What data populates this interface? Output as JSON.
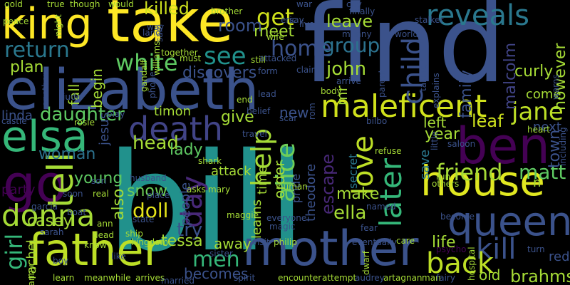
{
  "words": [
    {
      "text": "bill",
      "color": "#21918c",
      "rotated": false
    },
    {
      "text": "find",
      "color": "#3b528b",
      "rotated": false
    },
    {
      "text": "elizabeth",
      "color": "#3b528b",
      "rotated": false
    },
    {
      "text": "take",
      "color": "#fde725",
      "rotated": false
    },
    {
      "text": "king",
      "color": "#fde725",
      "rotated": false
    },
    {
      "text": "mother",
      "color": "#3b528b",
      "rotated": false
    },
    {
      "text": "father",
      "color": "#bddf26",
      "rotated": false
    },
    {
      "text": "house",
      "color": "#e0e721",
      "rotated": false
    },
    {
      "text": "ben",
      "color": "#440154",
      "rotated": false
    },
    {
      "text": "queen",
      "color": "#3b528b",
      "rotated": false
    },
    {
      "text": "maleficent",
      "color": "#d0e11c",
      "rotated": false
    },
    {
      "text": "elsa",
      "color": "#35b779",
      "rotated": false
    },
    {
      "text": "go",
      "color": "#440154",
      "rotated": false
    },
    {
      "text": "death",
      "color": "#414487",
      "rotated": false
    },
    {
      "text": "reveals",
      "color": "#2a788e",
      "rotated": false
    },
    {
      "text": "child",
      "color": "#3b528b",
      "rotated": true
    },
    {
      "text": "kill",
      "color": "#3b528b",
      "rotated": false
    },
    {
      "text": "love",
      "color": "#bddf26",
      "rotated": true
    },
    {
      "text": "later",
      "color": "#35b779",
      "rotated": true
    },
    {
      "text": "back",
      "color": "#bddf26",
      "rotated": false
    },
    {
      "text": "friend",
      "color": "#a5db36",
      "rotated": false
    },
    {
      "text": "jane",
      "color": "#bddf26",
      "rotated": false
    },
    {
      "text": "tell",
      "color": "#a5db36",
      "rotated": true
    },
    {
      "text": "donna",
      "color": "#a5db36",
      "rotated": false
    },
    {
      "text": "help",
      "color": "#a5db36",
      "rotated": true
    },
    {
      "text": "alice",
      "color": "#6ece58",
      "rotated": true
    },
    {
      "text": "white",
      "color": "#5ec962",
      "rotated": false
    },
    {
      "text": "return",
      "color": "#2a788e",
      "rotated": false
    },
    {
      "text": "group",
      "color": "#2c728e",
      "rotated": false
    },
    {
      "text": "home",
      "color": "#3b528b",
      "rotated": false
    },
    {
      "text": "john",
      "color": "#a5db36",
      "rotated": false
    },
    {
      "text": "see",
      "color": "#21918c",
      "rotated": false
    },
    {
      "text": "matt",
      "color": "#5ec962",
      "rotated": false
    },
    {
      "text": "day",
      "color": "#482878",
      "rotated": true
    },
    {
      "text": "get",
      "color": "#d0e11c",
      "rotated": false
    },
    {
      "text": "men",
      "color": "#35b779",
      "rotated": false
    },
    {
      "text": "girl",
      "color": "#35b779",
      "rotated": true
    },
    {
      "text": "daughter",
      "color": "#5ec962",
      "rotated": false
    },
    {
      "text": "ella",
      "color": "#a5db36",
      "rotated": false
    },
    {
      "text": "brahms",
      "color": "#a5db36",
      "rotated": false
    },
    {
      "text": "killed",
      "color": "#cde11d",
      "rotated": false
    },
    {
      "text": "plan",
      "color": "#a5db36",
      "rotated": false
    },
    {
      "text": "meet",
      "color": "#a5db36",
      "rotated": false
    },
    {
      "text": "leave",
      "color": "#a5db36",
      "rotated": false
    },
    {
      "text": "room",
      "color": "#3b528b",
      "rotated": false
    },
    {
      "text": "head",
      "color": "#a5db36",
      "rotated": false
    },
    {
      "text": "lady",
      "color": "#5ec962",
      "rotated": false
    },
    {
      "text": "snow",
      "color": "#6ece58",
      "rotated": false
    },
    {
      "text": "doll",
      "color": "#e5e419",
      "rotated": false
    },
    {
      "text": "try",
      "color": "#3b528b",
      "rotated": false
    },
    {
      "text": "escape",
      "color": "#482878",
      "rotated": true
    },
    {
      "text": "make",
      "color": "#a5db36",
      "rotated": false
    },
    {
      "text": "woman",
      "color": "#2c728e",
      "rotated": false
    },
    {
      "text": "young",
      "color": "#5ec962",
      "rotated": false
    },
    {
      "text": "tessa",
      "color": "#a5db36",
      "rotated": false
    },
    {
      "text": "discovers",
      "color": "#3b528b",
      "rotated": false
    },
    {
      "text": "attack",
      "color": "#a5db36",
      "rotated": false
    },
    {
      "text": "life",
      "color": "#a5db36",
      "rotated": false
    },
    {
      "text": "year",
      "color": "#a5db36",
      "rotated": false
    },
    {
      "text": "left",
      "color": "#a5db36",
      "rotated": false
    },
    {
      "text": "leaf",
      "color": "#cde11d",
      "rotated": false
    },
    {
      "text": "casey",
      "color": "#a5db36",
      "rotated": false
    },
    {
      "text": "away",
      "color": "#a5db36",
      "rotated": false
    },
    {
      "text": "becomes",
      "color": "#3b528b",
      "rotated": false
    },
    {
      "text": "old",
      "color": "#a5db36",
      "rotated": false
    },
    {
      "text": "red",
      "color": "#3b528b",
      "rotated": false
    },
    {
      "text": "curly",
      "color": "#a5db36",
      "rotated": false
    },
    {
      "text": "malcolm",
      "color": "#414487",
      "rotated": true
    },
    {
      "text": "family",
      "color": "#3b528b",
      "rotated": true
    },
    {
      "text": "town",
      "color": "#3b528b",
      "rotated": true
    },
    {
      "text": "come",
      "color": "#a5db36",
      "rotated": false
    },
    {
      "text": "however",
      "color": "#a5db36",
      "rotated": true
    },
    {
      "text": "next",
      "color": "#3b528b",
      "rotated": false
    },
    {
      "text": "timon",
      "color": "#a5db36",
      "rotated": false
    },
    {
      "text": "give",
      "color": "#a5db36",
      "rotated": false
    },
    {
      "text": "new",
      "color": "#3b528b",
      "rotated": false
    },
    {
      "text": "linda",
      "color": "#3b528b",
      "rotated": false
    },
    {
      "text": "also",
      "color": "#a5db36",
      "rotated": true
    },
    {
      "text": "begin",
      "color": "#a5db36",
      "rotated": true
    },
    {
      "text": "fall",
      "color": "#a5db36",
      "rotated": true
    },
    {
      "text": "jesus",
      "color": "#3b528b",
      "rotated": true
    },
    {
      "text": "party",
      "color": "#440154",
      "rotated": false
    },
    {
      "text": "rachel",
      "color": "#a5db36",
      "rotated": true
    },
    {
      "text": "theodore",
      "color": "#3b528b",
      "rotated": true
    },
    {
      "text": "order",
      "color": "#a5db36",
      "rotated": true
    },
    {
      "text": "time",
      "color": "#a5db36",
      "rotated": true
    },
    {
      "text": "learns",
      "color": "#a5db36",
      "rotated": true
    },
    {
      "text": "people",
      "color": "#3b528b",
      "rotated": true
    },
    {
      "text": "pride",
      "color": "#3b528b",
      "rotated": true
    },
    {
      "text": "save",
      "color": "#2a788e",
      "rotated": true
    },
    {
      "text": "secret",
      "color": "#2a788e",
      "rotated": true
    },
    {
      "text": "mr",
      "color": "#a5db36",
      "rotated": true
    },
    {
      "text": "n",
      "color": "#a5db36",
      "rotated": false
    },
    {
      "text": "gold",
      "color": "#a5db36",
      "rotated": false
    },
    {
      "text": "true",
      "color": "#a5db36",
      "rotated": false
    },
    {
      "text": "though",
      "color": "#a5db36",
      "rotated": false
    },
    {
      "text": "would",
      "color": "#a5db36",
      "rotated": false
    },
    {
      "text": "war",
      "color": "#3b528b",
      "rotated": false
    },
    {
      "text": "city",
      "color": "#3b528b",
      "rotated": false
    },
    {
      "text": "brother",
      "color": "#a5db36",
      "rotated": false
    },
    {
      "text": "finally",
      "color": "#3b528b",
      "rotated": false
    },
    {
      "text": "stalker",
      "color": "#3b528b",
      "rotated": false
    },
    {
      "text": "world",
      "color": "#3b528b",
      "rotated": false
    },
    {
      "text": "peace",
      "color": "#a5db36",
      "rotated": false
    },
    {
      "text": "night",
      "color": "#a5db36",
      "rotated": true
    },
    {
      "text": "say",
      "color": "#3b528b",
      "rotated": false
    },
    {
      "text": "munny",
      "color": "#3b528b",
      "rotated": false
    },
    {
      "text": "wife",
      "color": "#a5db36",
      "rotated": false
    },
    {
      "text": "must",
      "color": "#a5db36",
      "rotated": false
    },
    {
      "text": "together",
      "color": "#a5db36",
      "rotated": false
    },
    {
      "text": "still",
      "color": "#a5db36",
      "rotated": false
    },
    {
      "text": "attacked",
      "color": "#3b528b",
      "rotated": false
    },
    {
      "text": "form",
      "color": "#3b528b",
      "rotated": false
    },
    {
      "text": "claim",
      "color": "#3b528b",
      "rotated": false
    },
    {
      "text": "body",
      "color": "#a5db36",
      "rotated": false
    },
    {
      "text": "arrive",
      "color": "#3b528b",
      "rotated": false
    },
    {
      "text": "taking",
      "color": "#3b528b",
      "rotated": true
    },
    {
      "text": "explains",
      "color": "#3b528b",
      "rotated": true
    },
    {
      "text": "warns",
      "color": "#3b528b",
      "rotated": true
    },
    {
      "text": "jude",
      "color": "#3b528b",
      "rotated": false
    },
    {
      "text": "castle",
      "color": "#3b528b",
      "rotated": false
    },
    {
      "text": "rosie",
      "color": "#a5db36",
      "rotated": false
    },
    {
      "text": "play",
      "color": "#3b528b",
      "rotated": false
    },
    {
      "text": "end",
      "color": "#a5db36",
      "rotated": false
    },
    {
      "text": "lead",
      "color": "#3b528b",
      "rotated": false
    },
    {
      "text": "belief",
      "color": "#3b528b",
      "rotated": false
    },
    {
      "text": "scar",
      "color": "#3b528b",
      "rotated": false
    },
    {
      "text": "travel",
      "color": "#3b528b",
      "rotated": false
    },
    {
      "text": "bilbo",
      "color": "#3b528b",
      "rotated": false
    },
    {
      "text": "refuse",
      "color": "#a5db36",
      "rotated": false
    },
    {
      "text": "saloon",
      "color": "#3b528b",
      "rotated": false
    },
    {
      "text": "heart",
      "color": "#a5db36",
      "rotated": false
    },
    {
      "text": "including",
      "color": "#3b528b",
      "rotated": true
    },
    {
      "text": "shark",
      "color": "#a5db36",
      "rotated": false
    },
    {
      "text": "husband",
      "color": "#3b528b",
      "rotated": false
    },
    {
      "text": "asks",
      "color": "#a5db36",
      "rotated": false
    },
    {
      "text": "mary",
      "color": "#a5db36",
      "rotated": false
    },
    {
      "text": "place",
      "color": "#3b528b",
      "rotated": false
    },
    {
      "text": "human",
      "color": "#a5db36",
      "rotated": false
    },
    {
      "text": "named",
      "color": "#3b528b",
      "rotated": false
    },
    {
      "text": "fear",
      "color": "#3b528b",
      "rotated": false
    },
    {
      "text": "become",
      "color": "#3b528b",
      "rotated": false
    },
    {
      "text": "soon",
      "color": "#3b528b",
      "rotated": false
    },
    {
      "text": "real",
      "color": "#a5db36",
      "rotated": false
    },
    {
      "text": "garcia",
      "color": "#3b528b",
      "rotated": false
    },
    {
      "text": "boat",
      "color": "#3b528b",
      "rotated": false
    },
    {
      "text": "ship",
      "color": "#a5db36",
      "rotated": false
    },
    {
      "text": "state",
      "color": "#3b528b",
      "rotated": false
    },
    {
      "text": "kingdom",
      "color": "#a5db36",
      "rotated": false
    },
    {
      "text": "everyone",
      "color": "#3b528b",
      "rotated": false
    },
    {
      "text": "magic",
      "color": "#3b528b",
      "rotated": false
    },
    {
      "text": "maggie",
      "color": "#a5db36",
      "rotated": false
    },
    {
      "text": "visit",
      "color": "#3b528b",
      "rotated": false
    },
    {
      "text": "philip",
      "color": "#a5db36",
      "rotated": false
    },
    {
      "text": "eventually",
      "color": "#3b528b",
      "rotated": false
    },
    {
      "text": "care",
      "color": "#a5db36",
      "rotated": false
    },
    {
      "text": "psycho",
      "color": "#440154",
      "rotated": false
    },
    {
      "text": "turn",
      "color": "#3b528b",
      "rotated": false
    },
    {
      "text": "sarah",
      "color": "#3b528b",
      "rotated": false
    },
    {
      "text": "dead",
      "color": "#a5db36",
      "rotated": false
    },
    {
      "text": "know",
      "color": "#a5db36",
      "rotated": false
    },
    {
      "text": "like",
      "color": "#3b528b",
      "rotated": false
    },
    {
      "text": "boy",
      "color": "#3b528b",
      "rotated": false
    },
    {
      "text": "sister",
      "color": "#3b528b",
      "rotated": false
    },
    {
      "text": "spirit",
      "color": "#3b528b",
      "rotated": false
    },
    {
      "text": "learn",
      "color": "#a5db36",
      "rotated": false
    },
    {
      "text": "meanwhile",
      "color": "#a5db36",
      "rotated": false
    },
    {
      "text": "arrives",
      "color": "#a5db36",
      "rotated": false
    },
    {
      "text": "married",
      "color": "#3b528b",
      "rotated": false
    },
    {
      "text": "encounter",
      "color": "#a5db36",
      "rotated": false
    },
    {
      "text": "attempt",
      "color": "#a5db36",
      "rotated": false
    },
    {
      "text": "audrey",
      "color": "#3b528b",
      "rotated": false
    },
    {
      "text": "artagnan",
      "color": "#a5db36",
      "rotated": false
    },
    {
      "text": "man",
      "color": "#a5db36",
      "rotated": false
    },
    {
      "text": "fairy",
      "color": "#3b528b",
      "rotated": false
    },
    {
      "text": "dwarf",
      "color": "#a5db36",
      "rotated": true
    },
    {
      "text": "hospital",
      "color": "#a5db36",
      "rotated": true
    },
    {
      "text": "granny",
      "color": "#a5db36",
      "rotated": true
    },
    {
      "text": "ann",
      "color": "#a5db36",
      "rotated": false
    },
    {
      "text": "way",
      "color": "#3b528b",
      "rotated": false
    },
    {
      "text": "gandalf",
      "color": "#a5db36",
      "rotated": true
    },
    {
      "text": "williams",
      "color": "#a5db36",
      "rotated": true
    },
    {
      "text": "another",
      "color": "#3b528b",
      "rotated": true
    },
    {
      "text": "phone",
      "color": "#3b528b",
      "rotated": true
    },
    {
      "text": "sam",
      "color": "#3b528b",
      "rotated": true
    },
    {
      "text": "rom",
      "color": "#3b528b",
      "rotated": true
    },
    {
      "text": "parent",
      "color": "#3b528b",
      "rotated": true
    },
    {
      "text": "live",
      "color": "#3b528b",
      "rotated": false
    },
    {
      "text": "land",
      "color": "#3b528b",
      "rotated": false
    },
    {
      "text": "eric",
      "color": "#3b528b",
      "rotated": false
    },
    {
      "text": "son",
      "color": "#3b528b",
      "rotated": false
    },
    {
      "text": "little",
      "color": "#3b528b",
      "rotated": true
    },
    {
      "text": "run",
      "color": "#a5db36",
      "rotated": false
    },
    {
      "text": "others",
      "color": "#a5db36",
      "rotated": false
    },
    {
      "text": "wanto",
      "color": "#a5db36",
      "rotated": false
    }
  ]
}
